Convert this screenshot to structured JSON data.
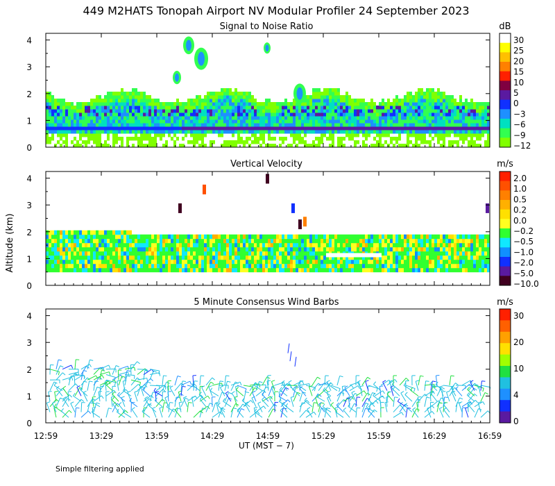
{
  "title": "449 M2HATS Tonopah Airport NV Modular Profiler 24 September 2023",
  "ylabel": "Altitude (km)",
  "xlabel": "UT  (MST − 7)",
  "footnote": "Simple filtering applied",
  "time_ticks": [
    "12:59",
    "13:29",
    "13:59",
    "14:29",
    "14:59",
    "15:29",
    "15:59",
    "16:29",
    "16:59"
  ],
  "altitude_ticks": [
    "0",
    "1",
    "2",
    "3",
    "4"
  ],
  "chart_data": [
    {
      "type": "heatmap",
      "title": "Signal to Noise Ratio",
      "units": "dB",
      "x_range_hours_ut": [
        12.983,
        16.983
      ],
      "ylim_km": [
        0,
        4.2
      ],
      "colorbar": {
        "labels": [
          "30",
          "25",
          "20",
          "15",
          "10",
          "5",
          "0",
          "−3",
          "−6",
          "−9",
          "−12"
        ],
        "colors": [
          "#ffffff",
          "#ffff00",
          "#ffc000",
          "#ff8000",
          "#ff2000",
          "#800040",
          "#5a1aa0",
          "#1030ff",
          "#1e90ff",
          "#00e0c0",
          "#32ff50",
          "#80ff00"
        ]
      },
      "features": [
        {
          "description": "noise band",
          "altitude_km": [
            0.4,
            2.0
          ]
        },
        {
          "description": "strong return layer",
          "altitude_km": [
            0.55,
            0.75
          ]
        }
      ]
    },
    {
      "type": "heatmap",
      "title": "Vertical Velocity",
      "units": "m/s",
      "x_range_hours_ut": [
        12.983,
        16.983
      ],
      "ylim_km": [
        0,
        4.2
      ],
      "colorbar": {
        "labels": [
          "2.0",
          "1.0",
          "0.5",
          "0.2",
          "0.0",
          "−0.2",
          "−0.5",
          "−1.0",
          "−2.0",
          "−5.0",
          "−10.0"
        ],
        "colors": [
          "#ff2000",
          "#ff5000",
          "#ff8000",
          "#ffb000",
          "#ffe000",
          "#ffff20",
          "#30ff30",
          "#10e8ff",
          "#1090ff",
          "#1030ff",
          "#5a1aa0",
          "#400020"
        ]
      }
    },
    {
      "type": "scatter",
      "title": "5 Minute Consensus Wind Barbs",
      "units": "m/s",
      "x_range_hours_ut": [
        12.983,
        16.983
      ],
      "ylim_km": [
        0,
        4.2
      ],
      "colorbar": {
        "labels": [
          "30",
          "20",
          "10",
          "4",
          "0"
        ],
        "colors": [
          "#ff2000",
          "#ff6000",
          "#ffa000",
          "#ffe000",
          "#a0ff00",
          "#20e040",
          "#20c0e0",
          "#1e90ff",
          "#1030ff",
          "#5a1aa0"
        ]
      }
    }
  ]
}
